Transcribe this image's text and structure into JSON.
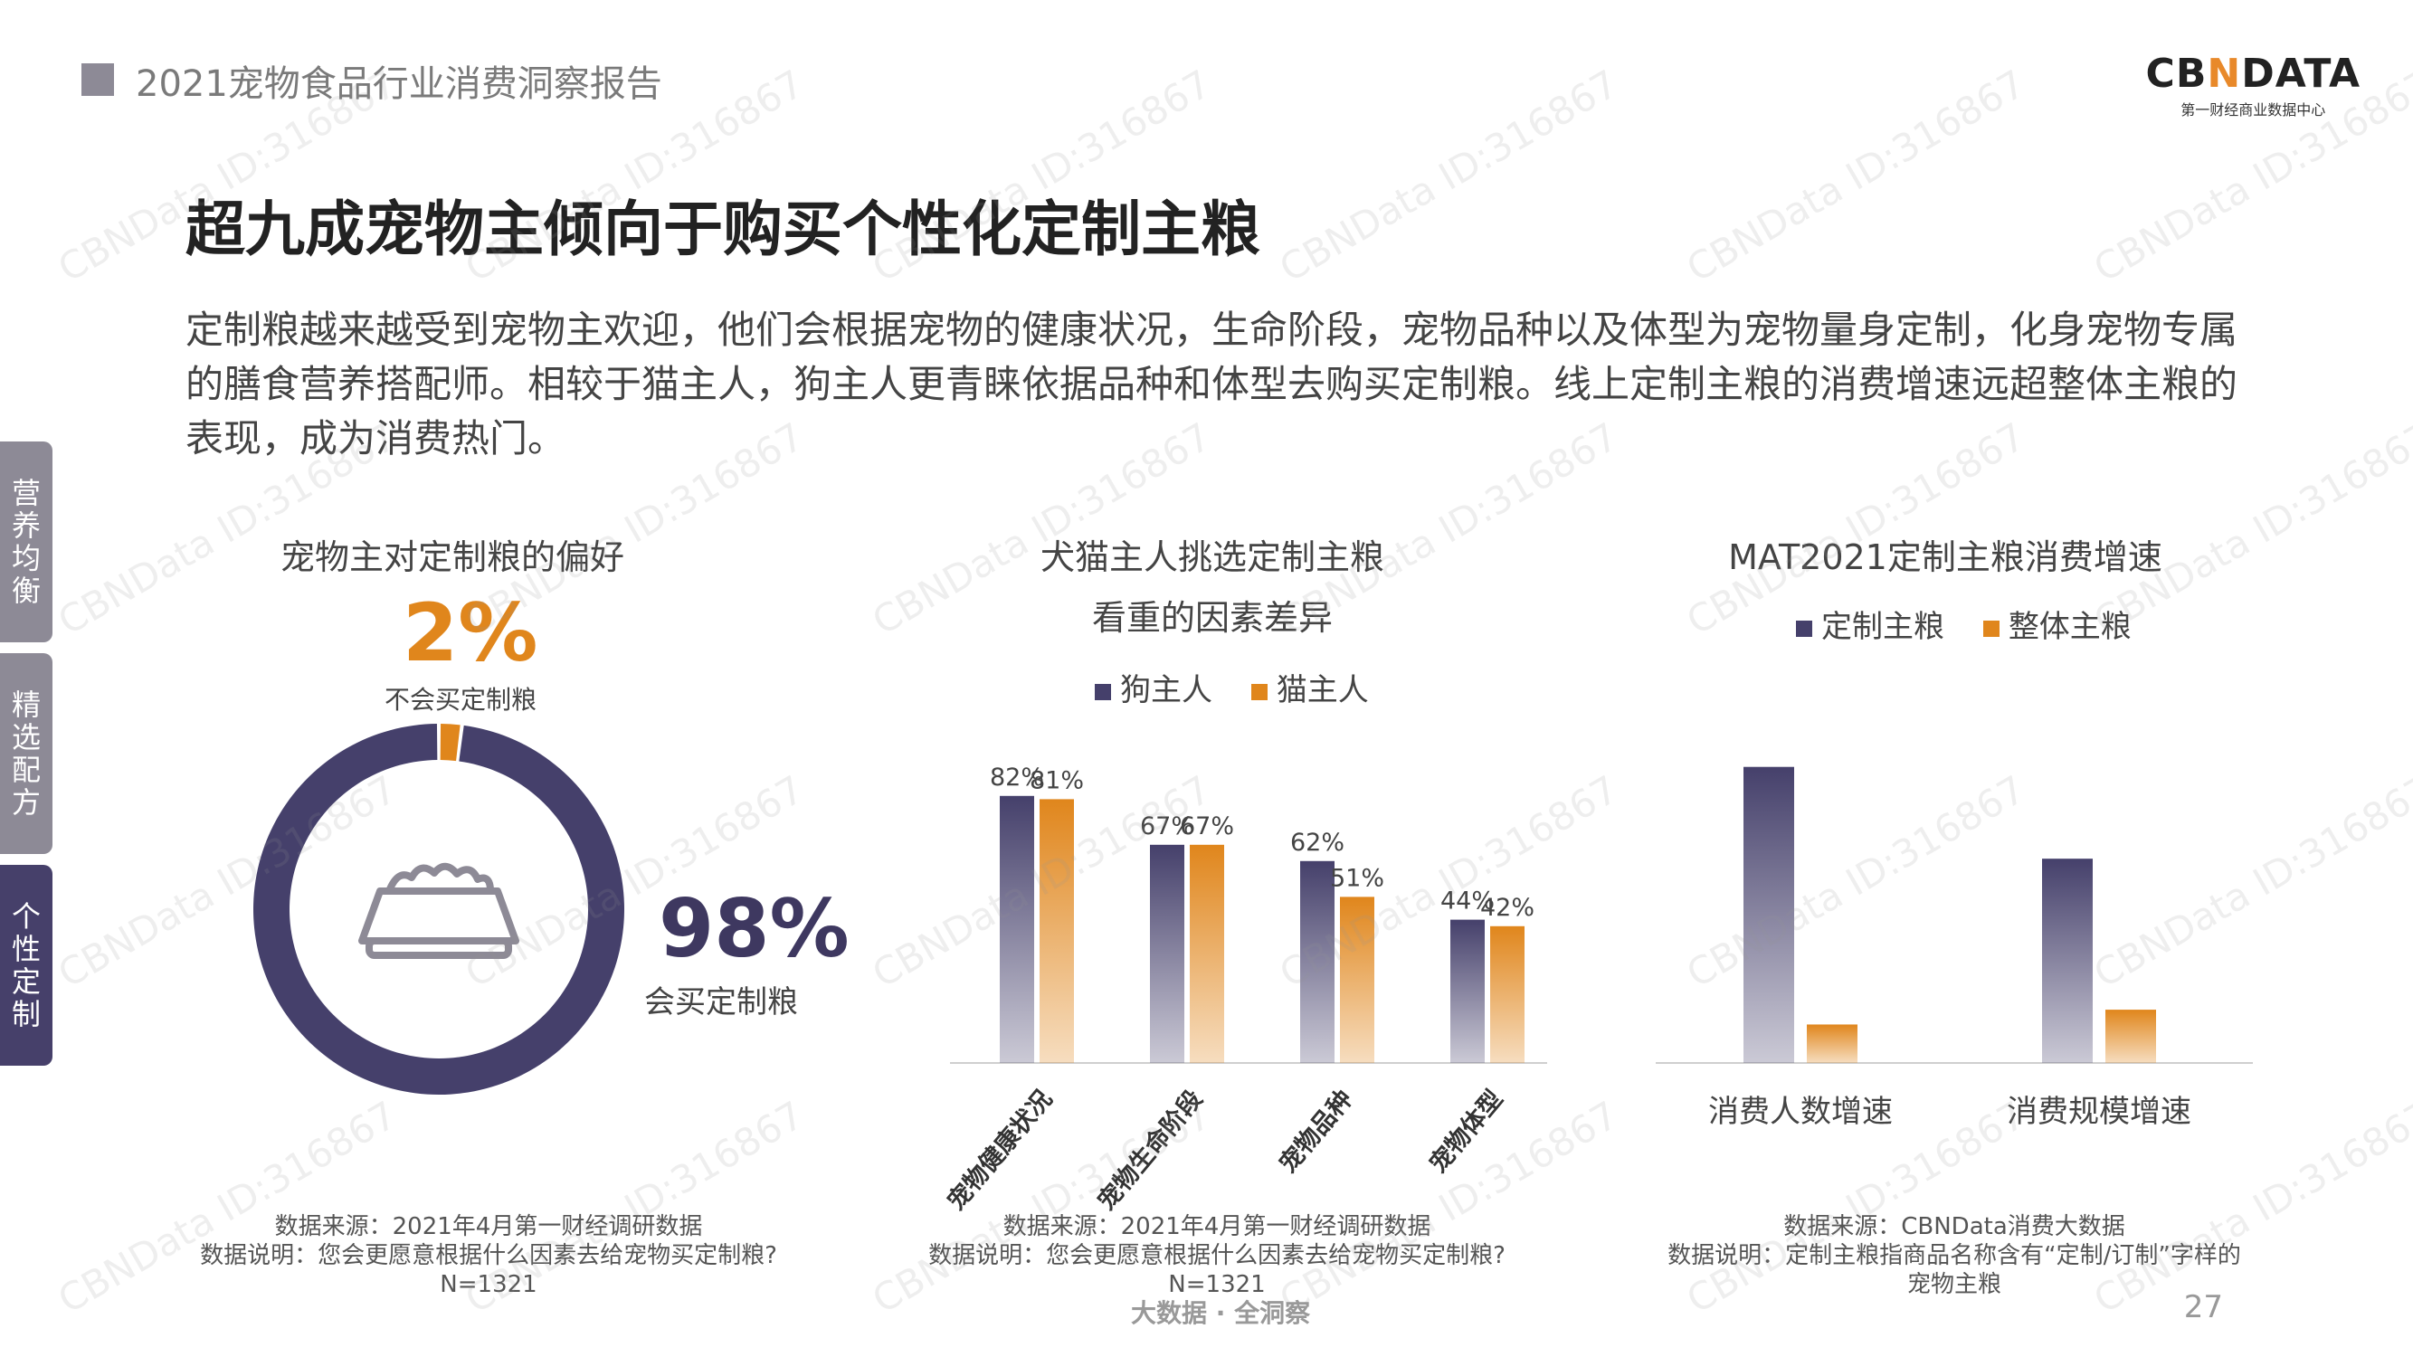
{
  "header": {
    "report_title": "2021宠物食品行业消费洞察报告"
  },
  "logo": {
    "main_left": "CB",
    "main_accent": "N",
    "main_right": "DATA",
    "sub": "第一财经商业数据中心"
  },
  "title": "超九成宠物主倾向于购买个性化定制主粮",
  "intro": "定制粮越来越受到宠物主欢迎，他们会根据宠物的健康状况，生命阶段，宠物品种以及体型为宠物量身定制，化身宠物专属的膳食营养搭配师。相较于猫主人，狗主人更青睐依据品种和体型去购买定制粮。线上定制主粮的消费增速远超整体主粮的表现，成为消费热门。",
  "side_tabs": [
    {
      "label": "营养均衡",
      "active": false
    },
    {
      "label": "精选配方",
      "active": false
    },
    {
      "label": "个性定制",
      "active": true
    }
  ],
  "icons": {
    "food_bowl": "food-bowl-icon"
  },
  "colors": {
    "purple": "#45406b",
    "orange": "#e0861c",
    "tab_gray": "#8d8a96",
    "tab_active": "#46406a"
  },
  "chart_data": [
    {
      "type": "pie",
      "title": "宠物主对定制粮的偏好",
      "slices": [
        {
          "label": "会买定制粮",
          "value": 98,
          "display": "98%",
          "color": "#45406b"
        },
        {
          "label": "不会买定制粮",
          "value": 2,
          "display": "2%",
          "color": "#e0861c"
        }
      ],
      "note_lines": [
        "数据来源：2021年4月第一财经调研数据",
        "数据说明：您会更愿意根据什么因素去给宠物买定制粮?",
        "N=1321"
      ]
    },
    {
      "type": "bar",
      "title_lines": [
        "犬猫主人挑选定制主粮",
        "看重的因素差异"
      ],
      "categories": [
        "宠物健康状况",
        "宠物生命阶段",
        "宠物品种",
        "宠物体型"
      ],
      "series": [
        {
          "name": "狗主人",
          "values": [
            82,
            67,
            62,
            44
          ],
          "labels": [
            "82%",
            "67%",
            "62%",
            "44%"
          ],
          "color": "#45406b"
        },
        {
          "name": "猫主人",
          "values": [
            81,
            67,
            51,
            42
          ],
          "labels": [
            "81%",
            "67%",
            "51%",
            "42%"
          ],
          "color": "#e0861c"
        }
      ],
      "ylim": [
        0,
        100
      ],
      "note_lines": [
        "数据来源：2021年4月第一财经调研数据",
        "数据说明：您会更愿意根据什么因素去给宠物买定制粮?",
        "N=1321"
      ]
    },
    {
      "type": "bar",
      "title": "MAT2021定制主粮消费增速",
      "categories": [
        "消费人数增速",
        "消费规模增速"
      ],
      "series": [
        {
          "name": "定制主粮",
          "values": [
            100,
            69
          ],
          "color": "#45406b"
        },
        {
          "name": "整体主粮",
          "values": [
            13,
            18
          ],
          "color": "#e0861c"
        }
      ],
      "ylim": [
        0,
        110
      ],
      "note_lines": [
        "数据来源：CBNData消费大数据",
        "数据说明：定制主粮指商品名称含有“定制/订制”字样的",
        "宠物主粮"
      ]
    }
  ],
  "footer": {
    "tagline": "大数据 · 全洞察",
    "page_number": "27"
  },
  "watermark": "CBNData ID:316867"
}
